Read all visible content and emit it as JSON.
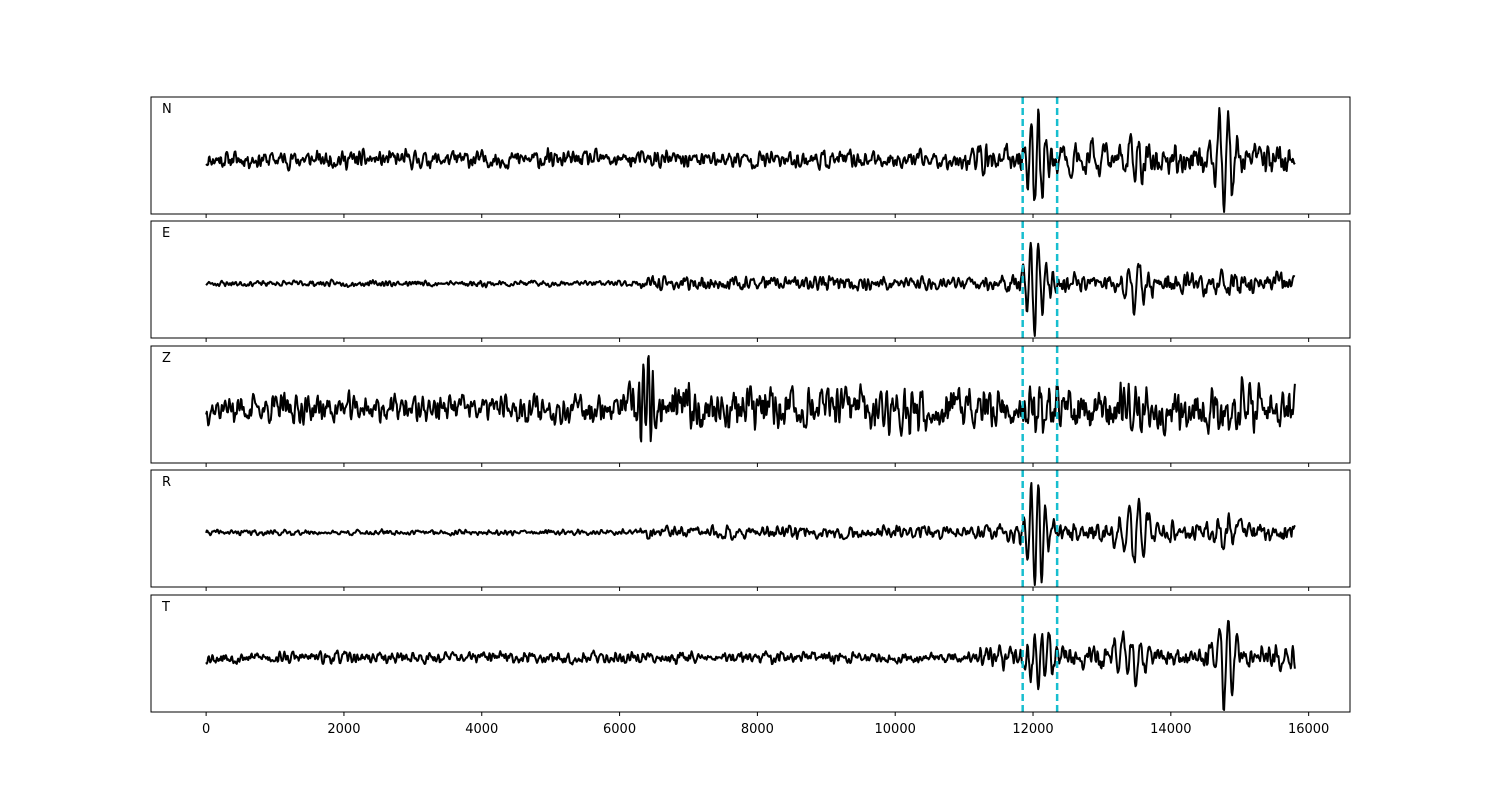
{
  "chart_data": {
    "type": "line",
    "title": "",
    "xlabel": "",
    "ylabel": "",
    "xlim": [
      -800,
      16600
    ],
    "x_ticks": [
      0,
      2000,
      4000,
      6000,
      8000,
      10000,
      12000,
      14000,
      16000
    ],
    "x_tick_labels": [
      "0",
      "2000",
      "4000",
      "6000",
      "8000",
      "10000",
      "12000",
      "14000",
      "16000"
    ],
    "grid": false,
    "legend": "none",
    "sample_range": [
      0,
      15800
    ],
    "pick_lines": [
      {
        "x": 11850,
        "color": "#17becf",
        "style": "dashed"
      },
      {
        "x": 12350,
        "color": "#17becf",
        "style": "dashed"
      }
    ],
    "series": [
      {
        "name": "N",
        "color": "#000000"
      },
      {
        "name": "E",
        "color": "#000000"
      },
      {
        "name": "Z",
        "color": "#000000"
      },
      {
        "name": "R",
        "color": "#000000"
      },
      {
        "name": "T",
        "color": "#000000"
      }
    ]
  }
}
